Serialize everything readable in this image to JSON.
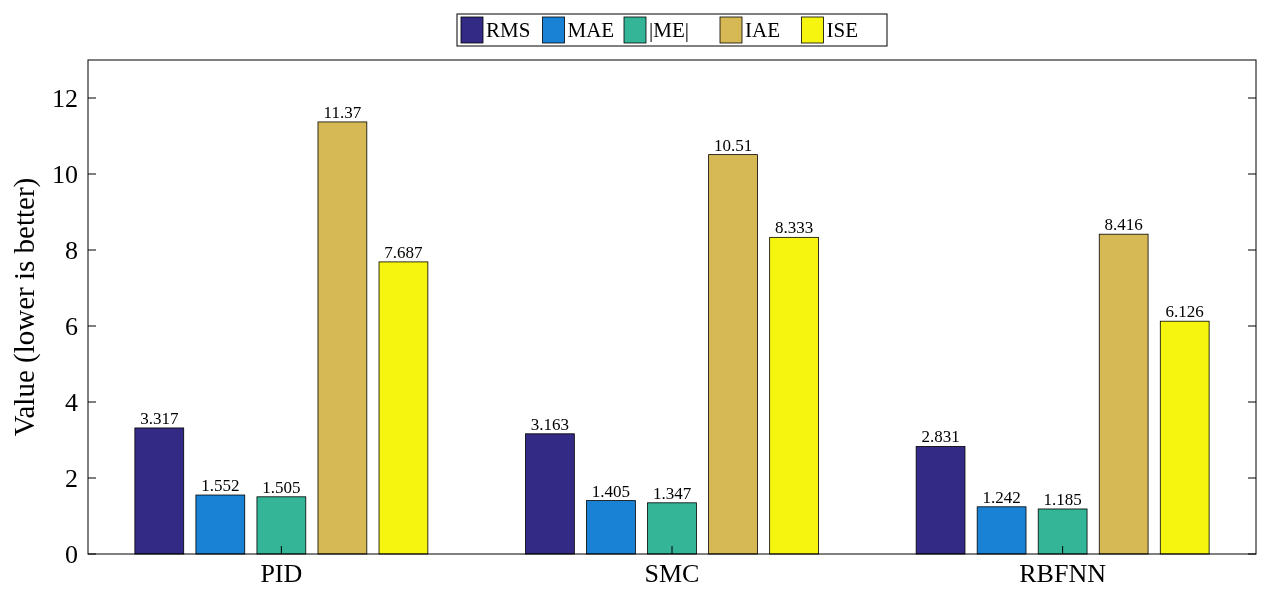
{
  "chart_data": {
    "type": "bar",
    "ylabel": "Value (lower is better)",
    "categories": [
      "PID",
      "SMC",
      "RBFNN"
    ],
    "series": [
      {
        "name": "RMS",
        "color": "#332a85",
        "values": [
          3.317,
          3.163,
          2.831
        ]
      },
      {
        "name": "MAE",
        "color": "#1a82d4",
        "values": [
          1.552,
          1.405,
          1.242
        ]
      },
      {
        "name": "|ME|",
        "color": "#35b597",
        "values": [
          1.505,
          1.347,
          1.185
        ]
      },
      {
        "name": "IAE",
        "color": "#d6b855",
        "values": [
          11.37,
          10.51,
          8.416
        ]
      },
      {
        "name": "ISE",
        "color": "#f5f50f",
        "values": [
          7.687,
          8.333,
          6.126
        ]
      }
    ],
    "ylim": [
      0,
      13
    ],
    "yticks": [
      0,
      2,
      4,
      6,
      8,
      10,
      12
    ],
    "data_labels": true,
    "legend": "top",
    "grid": false
  }
}
